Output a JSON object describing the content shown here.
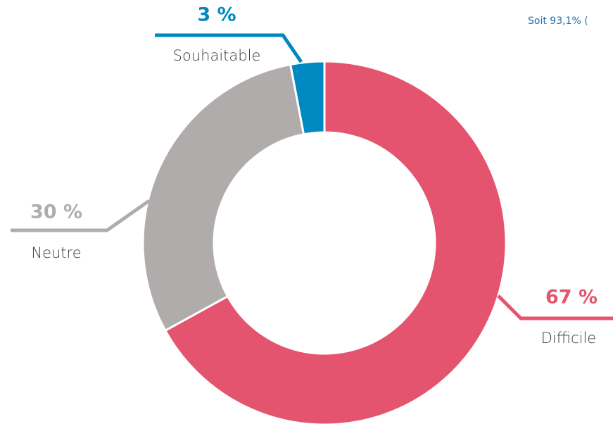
{
  "chart_data": {
    "type": "pie",
    "annotation": "Soit 93,1% (",
    "categories": [
      "Difficile",
      "Neutre",
      "Souhaitable"
    ],
    "values": [
      67,
      30,
      3
    ],
    "value_labels": [
      "67 %",
      "30 %",
      "3 %"
    ],
    "colors": [
      "#e5546f",
      "#b0acab",
      "#0088c0"
    ]
  }
}
